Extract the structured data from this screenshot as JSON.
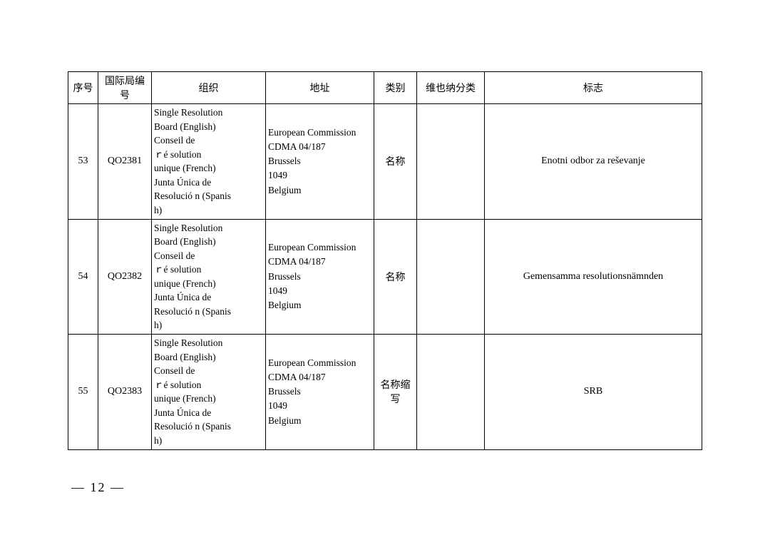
{
  "table": {
    "headers": {
      "seq": "序号",
      "code": "国际局编号",
      "org": "组织",
      "addr": "地址",
      "cat": "类别",
      "vienna": "维也纳分类",
      "mark": "标志"
    },
    "rows": [
      {
        "seq": "53",
        "code": "QO2381",
        "org_l1": "Single    Resolution",
        "org_l2": "Board (English)",
        "org_l3": "Conseil          de",
        "org_l4": "ｒé solution",
        "org_l5": "unique (French)",
        "org_l6": "Junta    Única   de",
        "org_l7": "Resolució n (Spanis",
        "org_l8": "h)",
        "addr_l1": "European Commission",
        "addr_l2": "CDMA 04/187",
        "addr_l3": "Brussels",
        "addr_l4": "1049",
        "addr_l5": "Belgium",
        "cat": "名称",
        "vienna": "",
        "mark": "Enotni odbor za reševanje"
      },
      {
        "seq": "54",
        "code": "QO2382",
        "org_l1": "Single    Resolution",
        "org_l2": "Board (English)",
        "org_l3": "Conseil          de",
        "org_l4": "ｒé solution",
        "org_l5": "unique (French)",
        "org_l6": "Junta    Única   de",
        "org_l7": "Resolució n (Spanis",
        "org_l8": "h)",
        "addr_l1": "European Commission",
        "addr_l2": "CDMA 04/187",
        "addr_l3": "Brussels",
        "addr_l4": "1049",
        "addr_l5": "Belgium",
        "cat": "名称",
        "vienna": "",
        "mark": "Gemensamma resolutionsnämnden"
      },
      {
        "seq": "55",
        "code": "QO2383",
        "org_l1": "Single    Resolution",
        "org_l2": "Board (English)",
        "org_l3": "Conseil          de",
        "org_l4": "ｒé solution",
        "org_l5": "unique (French)",
        "org_l6": "Junta    Única   de",
        "org_l7": "Resolució n (Spanis",
        "org_l8": "h)",
        "addr_l1": "European Commission",
        "addr_l2": "CDMA 04/187",
        "addr_l3": "Brussels",
        "addr_l4": "1049",
        "addr_l5": "Belgium",
        "cat": "名称缩写",
        "vienna": "",
        "mark": "SRB"
      }
    ]
  },
  "page_number": "— 12 —"
}
